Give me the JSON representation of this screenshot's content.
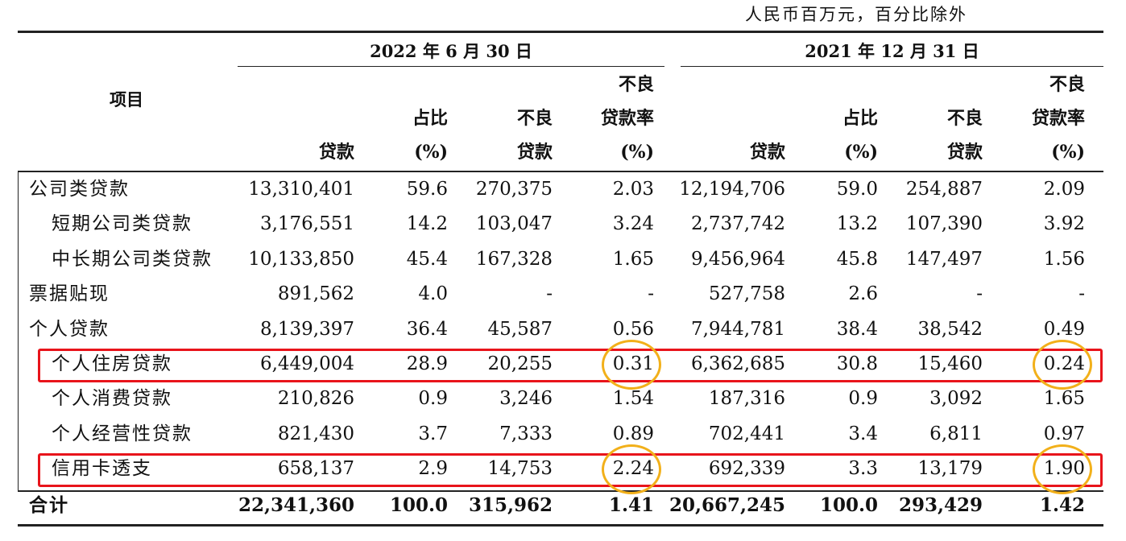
{
  "unit_note": "人民币百万元，百分比除外",
  "item_header": "项目",
  "periods": [
    "2022 年 6 月 30 日",
    "2021 年 12 月 31 日"
  ],
  "column_headers": [
    [
      "贷款"
    ],
    [
      "占比",
      "(%)"
    ],
    [
      "不良",
      "贷款"
    ],
    [
      "不良",
      "贷款率",
      "(%)"
    ],
    [
      "贷款"
    ],
    [
      "占比",
      "(%)"
    ],
    [
      "不良",
      "贷款"
    ],
    [
      "不良",
      "贷款率",
      "(%)"
    ]
  ],
  "rows": [
    {
      "name": "公司类贷款",
      "indent": false,
      "values": [
        "13,310,401",
        "59.6",
        "270,375",
        "2.03",
        "12,194,706",
        "59.0",
        "254,887",
        "2.09"
      ]
    },
    {
      "name": "短期公司类贷款",
      "indent": true,
      "values": [
        "3,176,551",
        "14.2",
        "103,047",
        "3.24",
        "2,737,742",
        "13.2",
        "107,390",
        "3.92"
      ]
    },
    {
      "name": "中长期公司类贷款",
      "indent": true,
      "values": [
        "10,133,850",
        "45.4",
        "167,328",
        "1.65",
        "9,456,964",
        "45.8",
        "147,497",
        "1.56"
      ]
    },
    {
      "name": "票据贴现",
      "indent": false,
      "values": [
        "891,562",
        "4.0",
        "-",
        "-",
        "527,758",
        "2.6",
        "-",
        "-"
      ]
    },
    {
      "name": "个人贷款",
      "indent": false,
      "values": [
        "8,139,397",
        "36.4",
        "45,587",
        "0.56",
        "7,944,781",
        "38.4",
        "38,542",
        "0.49"
      ]
    },
    {
      "name": "个人住房贷款",
      "indent": true,
      "values": [
        "6,449,004",
        "28.9",
        "20,255",
        "0.31",
        "6,362,685",
        "30.8",
        "15,460",
        "0.24"
      ]
    },
    {
      "name": "个人消费贷款",
      "indent": true,
      "values": [
        "210,826",
        "0.9",
        "3,246",
        "1.54",
        "187,316",
        "0.9",
        "3,092",
        "1.65"
      ]
    },
    {
      "name": "个人经营性贷款",
      "indent": true,
      "values": [
        "821,430",
        "3.7",
        "7,333",
        "0.89",
        "702,441",
        "3.4",
        "6,811",
        "0.97"
      ]
    },
    {
      "name": "信用卡透支",
      "indent": true,
      "values": [
        "658,137",
        "2.9",
        "14,753",
        "2.24",
        "692,339",
        "3.3",
        "13,179",
        "1.90"
      ]
    },
    {
      "name": "合计",
      "indent": false,
      "total": true,
      "values": [
        "22,341,360",
        "100.0",
        "315,962",
        "1.41",
        "20,667,245",
        "100.0",
        "293,429",
        "1.42"
      ]
    }
  ],
  "highlights": {
    "box_color": "#e8141b",
    "circle_color": "#f2b01a",
    "boxed_rows": [
      "个人住房贷款",
      "信用卡透支"
    ],
    "circled_values": [
      "0.31",
      "0.24",
      "2.24",
      "1.90"
    ]
  }
}
